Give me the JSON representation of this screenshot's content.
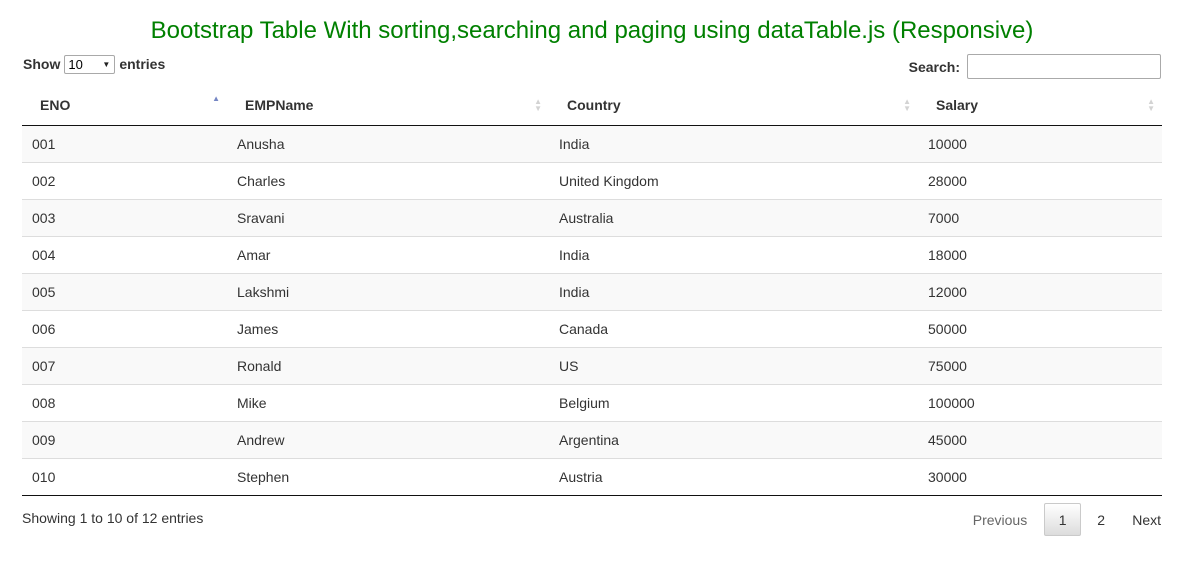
{
  "title": "Bootstrap Table With sorting,searching and paging using dataTable.js (Responsive)",
  "length_control": {
    "prefix": "Show",
    "selected": "10",
    "suffix": "entries"
  },
  "search": {
    "label": "Search:",
    "value": ""
  },
  "table": {
    "columns": [
      "ENO",
      "EMPName",
      "Country",
      "Salary"
    ],
    "sorted_column": "ENO",
    "sort_direction": "ascending",
    "rows": [
      [
        "001",
        "Anusha",
        "India",
        "10000"
      ],
      [
        "002",
        "Charles",
        "United Kingdom",
        "28000"
      ],
      [
        "003",
        "Sravani",
        "Australia",
        "7000"
      ],
      [
        "004",
        "Amar",
        "India",
        "18000"
      ],
      [
        "005",
        "Lakshmi",
        "India",
        "12000"
      ],
      [
        "006",
        "James",
        "Canada",
        "50000"
      ],
      [
        "007",
        "Ronald",
        "US",
        "75000"
      ],
      [
        "008",
        "Mike",
        "Belgium",
        "100000"
      ],
      [
        "009",
        "Andrew",
        "Argentina",
        "45000"
      ],
      [
        "010",
        "Stephen",
        "Austria",
        "30000"
      ]
    ]
  },
  "info": "Showing 1 to 10 of 12 entries",
  "pagination": {
    "previous": "Previous",
    "pages": [
      "1",
      "2"
    ],
    "current": "1",
    "next": "Next"
  },
  "colors": {
    "title": "#008000",
    "sort_active": "#7586c4",
    "sort_inactive": "#d3d3d3",
    "stripe": "#f9f9f9"
  }
}
